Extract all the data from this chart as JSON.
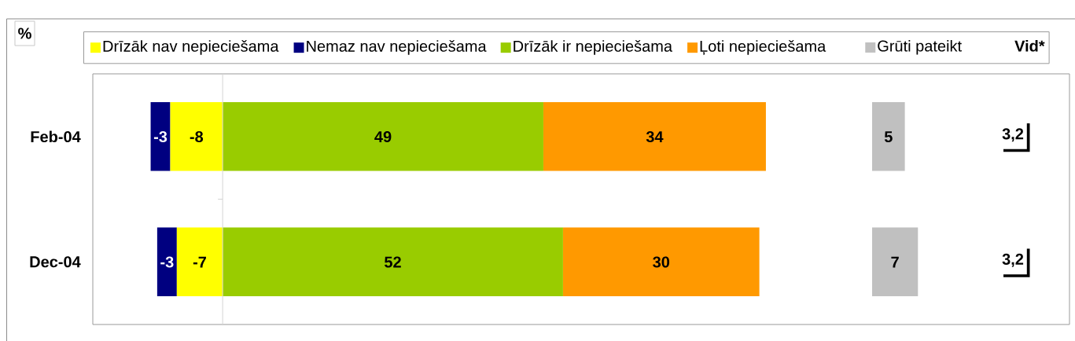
{
  "chart_data": [
    {
      "type": "bar",
      "orientation": "horizontal",
      "stacked": true,
      "data_labels": true,
      "legend": "top",
      "tick_labels": "y",
      "categories": [
        "Feb-04",
        "Dec-04"
      ],
      "series": [
        {
          "name": "Drīzāk nav nepieciešama",
          "color": "#ffff00",
          "values": [
            -8,
            -7
          ]
        },
        {
          "name": "Nemaz nav nepieciešama",
          "color": "#000080",
          "values": [
            -3,
            -3
          ]
        },
        {
          "name": "Drīzāk ir nepieciešama",
          "color": "#99cc00",
          "values": [
            49,
            52
          ]
        },
        {
          "name": "Ļoti nepieciešama",
          "color": "#ff9900",
          "values": [
            34,
            30
          ]
        }
      ],
      "annotations": [
        "%"
      ]
    },
    {
      "type": "bar",
      "orientation": "horizontal",
      "data_labels": true,
      "legend": "top",
      "tick_labels": false,
      "categories": [
        null,
        null
      ],
      "series": [
        {
          "name": "Grūti pateikt",
          "color": "#c0c0c0",
          "values": [
            5,
            7
          ]
        }
      ],
      "annotations": [
        "Vid*",
        "3,2",
        "3,2"
      ]
    }
  ]
}
